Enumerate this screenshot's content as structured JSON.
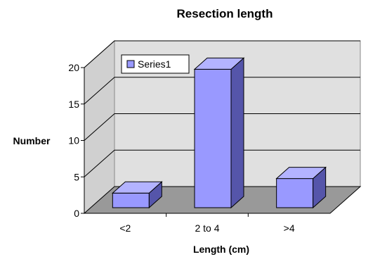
{
  "chart_data": {
    "type": "bar",
    "title": "Resection length",
    "xlabel": "Length (cm)",
    "ylabel": "Number",
    "categories": [
      "<2",
      "2 to 4",
      ">4"
    ],
    "series": [
      {
        "name": "Series1",
        "values": [
          2,
          19,
          4
        ]
      }
    ],
    "ylim": [
      0,
      20
    ],
    "yticks": [
      0,
      5,
      10,
      15,
      20
    ],
    "grid": true,
    "three_d": true,
    "legend_position": "top-left",
    "colors": {
      "bar_front": "#9999ff",
      "bar_top": "#b3b3ff",
      "bar_side": "#5555aa",
      "back_wall": "#e0e0e0",
      "side_wall": "#d0d0d0",
      "floor": "#999999",
      "gridline": "#000000"
    }
  }
}
